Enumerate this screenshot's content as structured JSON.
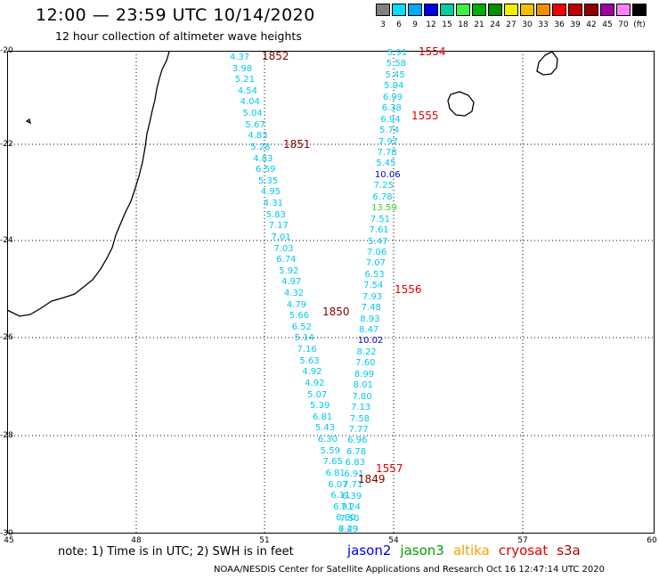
{
  "header": {
    "title": "12:00 — 23:59 UTC 10/14/2020",
    "subtitle": "12 hour collection of altimeter wave heights"
  },
  "color_scale": {
    "labels": [
      "3",
      "6",
      "9",
      "12",
      "15",
      "18",
      "21",
      "24",
      "27",
      "30",
      "33",
      "36",
      "39",
      "42",
      "45",
      "70",
      "(ft)"
    ],
    "colors": [
      "#808080",
      "#00e0ff",
      "#00a8ff",
      "#0000e0",
      "#00d0a0",
      "#40f040",
      "#00b000",
      "#009000",
      "#f0f000",
      "#f0c000",
      "#f09000",
      "#f00000",
      "#c00000",
      "#900000",
      "#a000a0",
      "#ff80ff",
      "#000000"
    ]
  },
  "axes": {
    "lat_ticks": [
      "-20",
      "-22",
      "-24",
      "-26",
      "-28",
      "-30"
    ],
    "lon_ticks": [
      "45",
      "48",
      "51",
      "54",
      "57",
      "60"
    ]
  },
  "tracks": {
    "west": {
      "values": [
        "4.37",
        "3.98",
        "5.21",
        "4.54",
        "4.04",
        "5.04",
        "5.67",
        "4.83",
        "5.28",
        "4.83",
        "6.59",
        "5.35",
        "4.95",
        "4.31",
        "5.83",
        "7.17",
        "7.01",
        "7.03",
        "6.74",
        "5.92",
        "4.97",
        "4.32",
        "4.79",
        "5.66",
        "6.52",
        "5.14",
        "7.16",
        "5.63",
        "4.92",
        "4.92",
        "5.07",
        "5.39",
        "6.81",
        "5.43",
        "6.30",
        "5.59",
        "7.65",
        "6.81",
        "6.07",
        "6.11",
        "6.91",
        "6.60",
        "6.29"
      ],
      "colors": [
        "#00d8f8"
      ]
    },
    "east": {
      "values": [
        "5.91",
        "5.58",
        "5.45",
        "5.94",
        "6.99",
        "6.38",
        "6.94",
        "5.74",
        "7.97",
        "7.78",
        "5.45",
        "10.06",
        "7.25",
        "6.78",
        "13.59",
        "7.51",
        "7.61",
        "5.47",
        "7.06",
        "7.07",
        "6.53",
        "7.54",
        "7.93",
        "7.48",
        "8.93",
        "8.47",
        "10.02",
        "8.22",
        "7.60",
        "8.99",
        "8.01",
        "7.80",
        "7.13",
        "7.58",
        "7.77",
        "6.96",
        "6.78",
        "6.83",
        "6.91",
        "7.71",
        "6.39",
        "7.24",
        "7.50",
        "7.49"
      ]
    }
  },
  "time_labels": [
    {
      "text": "1852",
      "color": "#800000"
    },
    {
      "text": "1851",
      "color": "#800000"
    },
    {
      "text": "1850",
      "color": "#800000"
    },
    {
      "text": "1849",
      "color": "#800000"
    },
    {
      "text": "1554",
      "color": "#e00000"
    },
    {
      "text": "1555",
      "color": "#e00000"
    },
    {
      "text": "1556",
      "color": "#e00000"
    },
    {
      "text": "1557",
      "color": "#e00000"
    }
  ],
  "footer": {
    "note": "note:  1) Time is in UTC;  2) SWH is in feet",
    "legend": [
      {
        "text": "jason2",
        "color": "#0000e0"
      },
      {
        "text": "jason3",
        "color": "#00a000"
      },
      {
        "text": "altika",
        "color": "#f0a000"
      },
      {
        "text": "cryosat",
        "color": "#e00000"
      },
      {
        "text": "s3a",
        "color": "#b00000"
      }
    ],
    "credit": "NOAA/NESDIS Center for Satellite Applications and Research    Oct 16 12:47:14 UTC 2020"
  }
}
